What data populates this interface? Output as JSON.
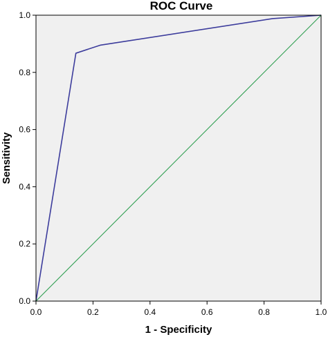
{
  "chart_data": {
    "type": "line",
    "title": "ROC Curve",
    "xlabel": "1 - Specificity",
    "ylabel": "Sensitivity",
    "xlim": [
      0.0,
      1.0
    ],
    "ylim": [
      0.0,
      1.0
    ],
    "x_ticks": [
      "0.0",
      "0.2",
      "0.4",
      "0.6",
      "0.8",
      "1.0"
    ],
    "y_ticks": [
      "0.0",
      "0.2",
      "0.4",
      "0.6",
      "0.8",
      "1.0"
    ],
    "grid": false,
    "series": [
      {
        "color": "#3c3c9c",
        "x": [
          0.0,
          0.14,
          0.225,
          0.83,
          1.0
        ],
        "y": [
          0.0,
          0.867,
          0.895,
          0.988,
          1.0
        ]
      },
      {
        "color": "#2e9e50",
        "x": [
          0.0,
          1.0
        ],
        "y": [
          0.0,
          1.0
        ]
      }
    ],
    "colors": {
      "plot_background": "#f0f0f0",
      "frame": "#000000"
    }
  }
}
